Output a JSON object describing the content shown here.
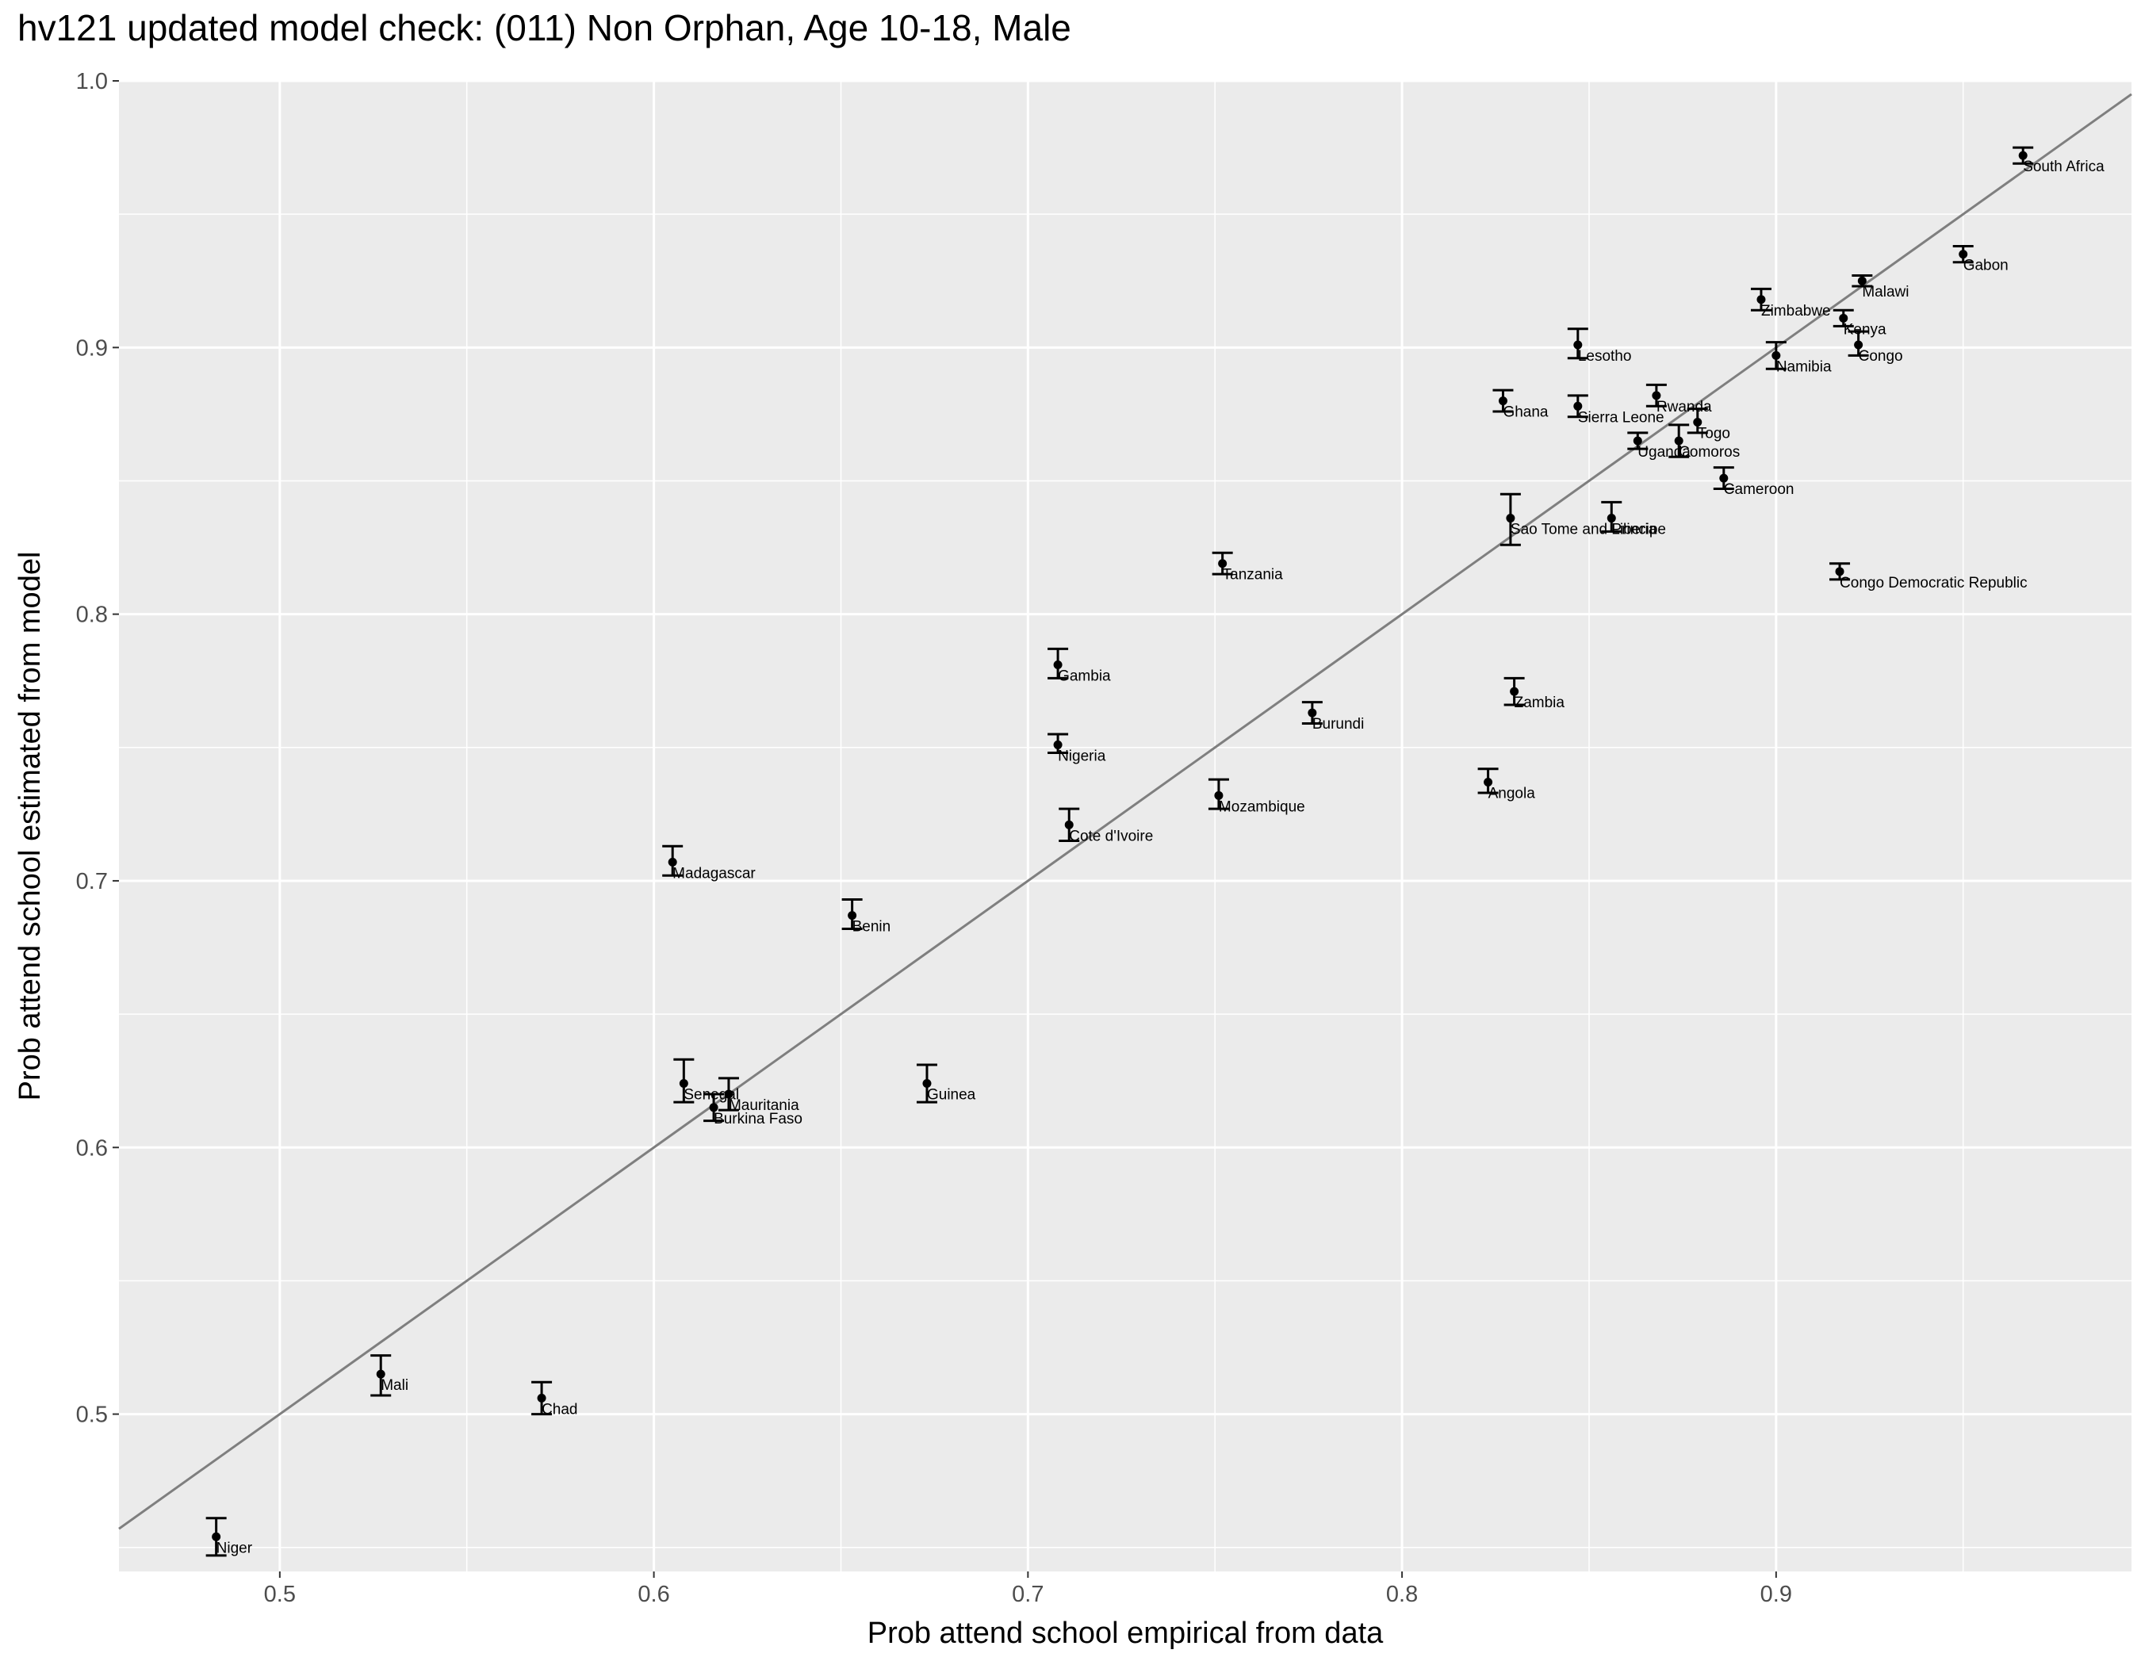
{
  "chart_data": {
    "type": "scatter",
    "title": "hv121 updated model check: (011) Non Orphan, Age 10-18, Male",
    "xlabel": "Prob attend school empirical from data",
    "ylabel": "Prob attend school estimated from model",
    "xlim": [
      0.457,
      0.995
    ],
    "ylim": [
      0.441,
      1.0
    ],
    "xticks": [
      "0.5",
      "0.6",
      "0.7",
      "0.8",
      "0.9"
    ],
    "yticks": [
      "0.5",
      "0.6",
      "0.7",
      "0.8",
      "0.9",
      "1.0"
    ],
    "grid": true,
    "reference_line": "y = x",
    "points": [
      {
        "label": "South Africa",
        "x": 0.966,
        "y": 0.972,
        "lo": 0.969,
        "hi": 0.975
      },
      {
        "label": "Gabon",
        "x": 0.95,
        "y": 0.935,
        "lo": 0.932,
        "hi": 0.938
      },
      {
        "label": "Malawi",
        "x": 0.923,
        "y": 0.925,
        "lo": 0.923,
        "hi": 0.927
      },
      {
        "label": "Zimbabwe",
        "x": 0.896,
        "y": 0.918,
        "lo": 0.914,
        "hi": 0.922
      },
      {
        "label": "Kenya",
        "x": 0.918,
        "y": 0.911,
        "lo": 0.908,
        "hi": 0.914
      },
      {
        "label": "Congo",
        "x": 0.922,
        "y": 0.901,
        "lo": 0.897,
        "hi": 0.906
      },
      {
        "label": "Lesotho",
        "x": 0.847,
        "y": 0.901,
        "lo": 0.896,
        "hi": 0.907
      },
      {
        "label": "Namibia",
        "x": 0.9,
        "y": 0.897,
        "lo": 0.892,
        "hi": 0.902
      },
      {
        "label": "Rwanda",
        "x": 0.868,
        "y": 0.882,
        "lo": 0.878,
        "hi": 0.886
      },
      {
        "label": "Ghana",
        "x": 0.827,
        "y": 0.88,
        "lo": 0.876,
        "hi": 0.884
      },
      {
        "label": "Sierra Leone",
        "x": 0.847,
        "y": 0.878,
        "lo": 0.874,
        "hi": 0.882
      },
      {
        "label": "Togo",
        "x": 0.879,
        "y": 0.872,
        "lo": 0.868,
        "hi": 0.877
      },
      {
        "label": "Uganda",
        "x": 0.863,
        "y": 0.865,
        "lo": 0.862,
        "hi": 0.868
      },
      {
        "label": "Comoros",
        "x": 0.874,
        "y": 0.865,
        "lo": 0.859,
        "hi": 0.871
      },
      {
        "label": "Cameroon",
        "x": 0.886,
        "y": 0.851,
        "lo": 0.847,
        "hi": 0.855
      },
      {
        "label": "Sao Tome and Principe",
        "x": 0.829,
        "y": 0.836,
        "lo": 0.826,
        "hi": 0.845
      },
      {
        "label": "Liberia",
        "x": 0.856,
        "y": 0.836,
        "lo": 0.831,
        "hi": 0.842
      },
      {
        "label": "Tanzania",
        "x": 0.752,
        "y": 0.819,
        "lo": 0.815,
        "hi": 0.823
      },
      {
        "label": "Congo Democratic Republic",
        "x": 0.917,
        "y": 0.816,
        "lo": 0.813,
        "hi": 0.819
      },
      {
        "label": "Gambia",
        "x": 0.708,
        "y": 0.781,
        "lo": 0.776,
        "hi": 0.787
      },
      {
        "label": "Zambia",
        "x": 0.83,
        "y": 0.771,
        "lo": 0.766,
        "hi": 0.776
      },
      {
        "label": "Burundi",
        "x": 0.776,
        "y": 0.763,
        "lo": 0.759,
        "hi": 0.767
      },
      {
        "label": "Nigeria",
        "x": 0.708,
        "y": 0.751,
        "lo": 0.748,
        "hi": 0.755
      },
      {
        "label": "Angola",
        "x": 0.823,
        "y": 0.737,
        "lo": 0.733,
        "hi": 0.742
      },
      {
        "label": "Mozambique",
        "x": 0.751,
        "y": 0.732,
        "lo": 0.727,
        "hi": 0.738
      },
      {
        "label": "Cote d'Ivoire",
        "x": 0.711,
        "y": 0.721,
        "lo": 0.715,
        "hi": 0.727
      },
      {
        "label": "Madagascar",
        "x": 0.605,
        "y": 0.707,
        "lo": 0.702,
        "hi": 0.713
      },
      {
        "label": "Benin",
        "x": 0.653,
        "y": 0.687,
        "lo": 0.682,
        "hi": 0.693
      },
      {
        "label": "Senegal",
        "x": 0.608,
        "y": 0.624,
        "lo": 0.617,
        "hi": 0.633
      },
      {
        "label": "Guinea",
        "x": 0.673,
        "y": 0.624,
        "lo": 0.617,
        "hi": 0.631
      },
      {
        "label": "Mauritania",
        "x": 0.62,
        "y": 0.62,
        "lo": 0.614,
        "hi": 0.626
      },
      {
        "label": "Burkina Faso",
        "x": 0.616,
        "y": 0.615,
        "lo": 0.61,
        "hi": 0.62
      },
      {
        "label": "Mali",
        "x": 0.527,
        "y": 0.515,
        "lo": 0.507,
        "hi": 0.522
      },
      {
        "label": "Chad",
        "x": 0.57,
        "y": 0.506,
        "lo": 0.5,
        "hi": 0.512
      },
      {
        "label": "Niger",
        "x": 0.483,
        "y": 0.454,
        "lo": 0.447,
        "hi": 0.461
      }
    ]
  }
}
